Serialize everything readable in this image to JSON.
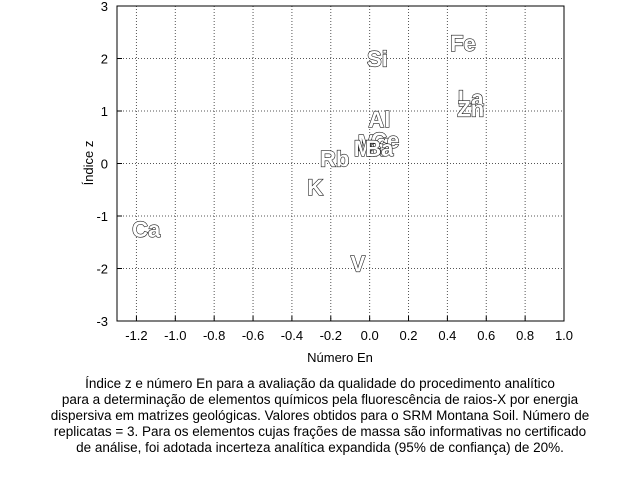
{
  "chart_data": {
    "type": "scatter",
    "xlabel": "Número En",
    "ylabel": "Índice z",
    "xlim": [
      -1.3,
      1.0
    ],
    "ylim": [
      -3,
      3
    ],
    "xticks": [
      -1.2,
      -1.0,
      -0.8,
      -0.6,
      -0.4,
      -0.2,
      0.0,
      0.2,
      0.4,
      0.6,
      0.8,
      1.0
    ],
    "xtick_labels": [
      "-1.2",
      "-1.0",
      "-0.8",
      "-0.6",
      "-0.4",
      "-0.2",
      "0.0",
      "0.2",
      "0.4",
      "0.6",
      "0.8",
      "1.0"
    ],
    "yticks": [
      -3,
      -2,
      -1,
      0,
      1,
      2,
      3
    ],
    "ytick_labels": [
      "-3",
      "-2",
      "-1",
      "0",
      "1",
      "2",
      "3"
    ],
    "grid": true,
    "points": [
      {
        "label": "Fe",
        "x": 0.48,
        "y": 2.3
      },
      {
        "label": "Si",
        "x": 0.04,
        "y": 2.0
      },
      {
        "label": "La",
        "x": 0.52,
        "y": 1.25
      },
      {
        "label": "Zn",
        "x": 0.52,
        "y": 1.05
      },
      {
        "label": "Al",
        "x": 0.05,
        "y": 0.85
      },
      {
        "label": "Mg",
        "x": 0.02,
        "y": 0.4
      },
      {
        "label": "Ce",
        "x": 0.08,
        "y": 0.45
      },
      {
        "label": "Mn",
        "x": 0.0,
        "y": 0.3
      },
      {
        "label": "Ba",
        "x": 0.05,
        "y": 0.3
      },
      {
        "label": "Rb",
        "x": -0.18,
        "y": 0.1
      },
      {
        "label": "K",
        "x": -0.28,
        "y": -0.45
      },
      {
        "label": "Ca",
        "x": -1.15,
        "y": -1.25
      },
      {
        "label": "V",
        "x": -0.06,
        "y": -1.9
      }
    ]
  },
  "caption": [
    "Índice z e número En para a avaliação da qualidade do procedimento analítico",
    "para a determinação de elementos químicos pela fluorescência de raios-X por energia",
    "dispersiva em matrizes geológicas. Valores obtidos para o SRM Montana Soil.  Número de",
    "replicatas = 3. Para os elementos cujas frações de massa são informativas no certificado",
    "de análise, foi adotada incerteza analítica expandida (95% de confiança) de 20%."
  ]
}
